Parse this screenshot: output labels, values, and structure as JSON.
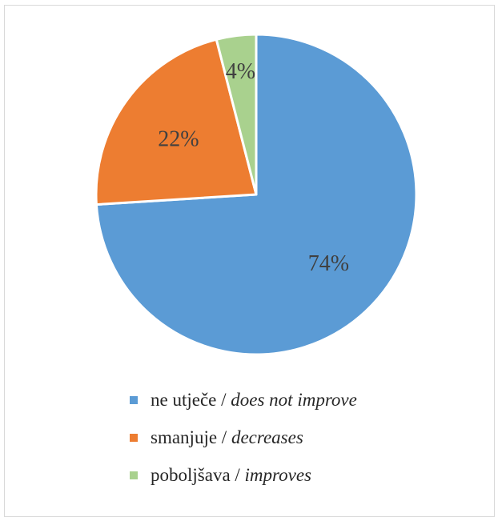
{
  "chart_data": {
    "type": "pie",
    "start_angle": "12 o'clock",
    "direction": "clockwise",
    "legend_position": "bottom",
    "slices": [
      {
        "label_hr": "ne utječe",
        "label_en": "does not improve",
        "value": 74,
        "value_label": "74%",
        "color": "#5b9bd5"
      },
      {
        "label_hr": "smanjuje",
        "label_en": "decreases",
        "value": 22,
        "value_label": "22%",
        "color": "#ed7d31"
      },
      {
        "label_hr": "poboljšava",
        "label_en": "improves",
        "value": 4,
        "value_label": "4%",
        "color": "#a9d18e"
      }
    ]
  },
  "legend": {
    "separator": " / "
  }
}
